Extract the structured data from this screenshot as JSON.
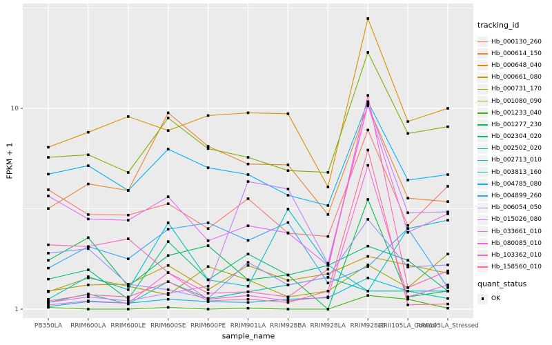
{
  "figure": {
    "background": "#FFFFFF",
    "panel_background": "#EBEBEB",
    "gridline_color": "#FFFFFF",
    "point_color": "#000000",
    "tick_label_color": "#4D4D4D"
  },
  "legend": {
    "title": "tracking_id",
    "quant_title": "quant_status",
    "quant_items": [
      {
        "label": "OK",
        "marker": "black-square"
      }
    ]
  },
  "chart_data": {
    "type": "line",
    "title": "",
    "xlabel": "sample_name",
    "ylabel": "FPKM + 1",
    "y_scale": "log10",
    "ylim": [
      0.9,
      33.5
    ],
    "y_ticks": [
      {
        "label": "10",
        "value": 10
      },
      {
        "label": "1",
        "value": 1
      }
    ],
    "y_minor_gridlines": [
      3.1623,
      31.623
    ],
    "grid": "major-and-minor",
    "legend_position": "right",
    "point_shape": "filled-square",
    "point_meaning": "quant_status = OK",
    "categories": [
      "PB350LA",
      "RRIM600LA",
      "RRIM600LE",
      "RRIM600SE",
      "RRIM600PE",
      "RRIM901LA",
      "RRIM928BA",
      "RRIM928LA",
      "RRIM928LB",
      "RRII105LA_Control",
      "RRII105LA_Stressed"
    ],
    "series": [
      {
        "name": "Hb_000130_260",
        "color": "#F8766D",
        "values": [
          3.93,
          2.96,
          2.94,
          3.35,
          2.52,
          3.55,
          2.39,
          2.3,
          7.8,
          2.61,
          4.09
        ]
      },
      {
        "name": "Hb_000614_150",
        "color": "#EA8331",
        "values": [
          3.17,
          4.2,
          3.9,
          9.5,
          6.47,
          5.28,
          5.23,
          2.96,
          10.3,
          3.57,
          3.43
        ]
      },
      {
        "name": "Hb_000648_040",
        "color": "#D89000",
        "values": [
          6.4,
          7.6,
          9.1,
          7.75,
          9.2,
          9.5,
          9.4,
          4.06,
          28.0,
          8.6,
          10.0
        ]
      },
      {
        "name": "Hb_000661_080",
        "color": "#C09B00",
        "values": [
          1.23,
          1.32,
          1.33,
          1.65,
          1.25,
          1.65,
          1.39,
          1.5,
          1.83,
          1.66,
          1.51
        ]
      },
      {
        "name": "Hb_000731_170",
        "color": "#A3A500",
        "values": [
          1.22,
          1.43,
          1.3,
          1.18,
          1.63,
          1.4,
          1.15,
          1.23,
          1.66,
          1.28,
          1.88
        ]
      },
      {
        "name": "Hb_001080_090",
        "color": "#7CAE00",
        "values": [
          5.7,
          5.87,
          4.79,
          8.95,
          6.3,
          5.7,
          4.9,
          4.8,
          19.0,
          7.5,
          8.1
        ]
      },
      {
        "name": "Hb_001233_040",
        "color": "#39B600",
        "values": [
          1.02,
          1.0,
          1.0,
          1.02,
          1.0,
          1.01,
          1.0,
          1.0,
          1.17,
          1.12,
          1.01
        ]
      },
      {
        "name": "Hb_001277_230",
        "color": "#00BB4E",
        "values": [
          1.75,
          2.27,
          1.3,
          1.85,
          2.07,
          1.4,
          1.48,
          1.0,
          3.52,
          1.15,
          1.23
        ]
      },
      {
        "name": "Hb_002304_020",
        "color": "#00BF7D",
        "values": [
          1.41,
          1.57,
          1.12,
          2.17,
          1.4,
          1.88,
          1.48,
          1.65,
          2.06,
          1.75,
          1.23
        ]
      },
      {
        "name": "Hb_002502_020",
        "color": "#00C1A3",
        "values": [
          1.08,
          1.19,
          1.06,
          1.37,
          1.13,
          1.22,
          1.32,
          1.44,
          1.23,
          1.23,
          1.13
        ]
      },
      {
        "name": "Hb_002713_010",
        "color": "#00BFC4",
        "values": [
          1.12,
          1.45,
          1.25,
          2.69,
          1.4,
          1.3,
          3.15,
          1.66,
          1.23,
          2.52,
          2.77
        ]
      },
      {
        "name": "Hb_003813_160",
        "color": "#00BAE0",
        "values": [
          1.03,
          1.09,
          1.07,
          1.12,
          1.09,
          1.08,
          1.12,
          1.14,
          1.43,
          1.23,
          1.23
        ]
      },
      {
        "name": "Hb_004785_080",
        "color": "#00B0F6",
        "values": [
          4.7,
          5.18,
          3.9,
          6.26,
          5.06,
          4.68,
          3.69,
          3.28,
          10.8,
          4.39,
          4.68
        ]
      },
      {
        "name": "Hb_004899_260",
        "color": "#35A2FF",
        "values": [
          1.6,
          2.05,
          1.78,
          2.5,
          2.69,
          2.2,
          2.7,
          1.35,
          1.63,
          2.52,
          1.28
        ]
      },
      {
        "name": "Hb_006054_050",
        "color": "#9590FF",
        "values": [
          1.9,
          2.0,
          1.33,
          1.25,
          1.13,
          1.71,
          1.32,
          1.44,
          2.8,
          1.62,
          1.66
        ]
      },
      {
        "name": "Hb_015026_080",
        "color": "#C77CFF",
        "values": [
          1.08,
          1.15,
          1.1,
          1.2,
          1.3,
          4.32,
          3.97,
          1.69,
          10.5,
          3.02,
          3.05
        ]
      },
      {
        "name": "Hb_033661_010",
        "color": "#E76BF3",
        "values": [
          3.66,
          2.81,
          2.77,
          3.63,
          2.19,
          2.6,
          2.4,
          1.65,
          10.4,
          2.41,
          2.98
        ]
      },
      {
        "name": "Hb_080085_010",
        "color": "#FA62DB",
        "values": [
          1.05,
          1.1,
          1.07,
          1.52,
          1.12,
          1.17,
          1.1,
          1.15,
          5.2,
          1.15,
          1.32
        ]
      },
      {
        "name": "Hb_103362_010",
        "color": "#FF62BC",
        "values": [
          2.09,
          2.05,
          2.24,
          1.52,
          1.2,
          1.22,
          1.15,
          1.58,
          11.6,
          1.28,
          1.55
        ]
      },
      {
        "name": "Hb_158560_010",
        "color": "#FF6A98",
        "values": [
          1.1,
          1.18,
          1.15,
          1.37,
          1.1,
          1.12,
          1.08,
          1.23,
          6.2,
          1.05,
          1.06
        ]
      }
    ]
  }
}
